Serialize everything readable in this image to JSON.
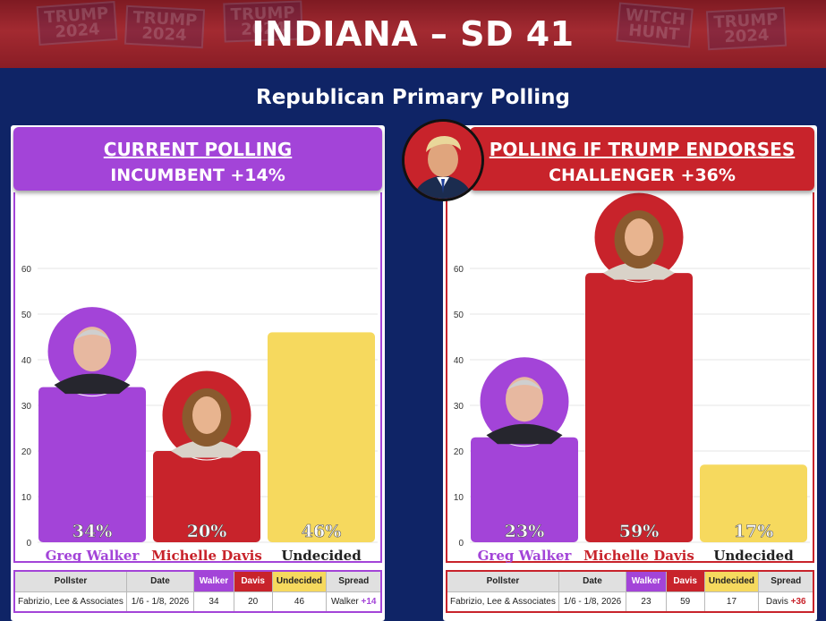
{
  "banner": {
    "title": "INDIANA – SD 41",
    "background_signs": [
      {
        "text": "TRUMP\n2024"
      },
      {
        "text": "TRUMP\n2024"
      },
      {
        "text": "TRUMP\n2024"
      },
      {
        "text": "WITCH\nHUNT"
      },
      {
        "text": "TRUMP\n2024"
      }
    ]
  },
  "subtitle": "Republican Primary Polling",
  "colors": {
    "walker": "#a344d8",
    "davis": "#c8232b",
    "undecided": "#f6d95e",
    "background": "#0f2466",
    "spread_walker": "#a344d8",
    "spread_davis": "#c8232b"
  },
  "panels": [
    {
      "header_line1": "CURRENT POLLING",
      "header_line2": "INCUMBENT +14%",
      "table": {
        "headers": [
          "Pollster",
          "Date",
          "Walker",
          "Davis",
          "Undecided",
          "Spread"
        ],
        "row": {
          "pollster": "Fabrizio, Lee & Associates",
          "date": "1/6 - 1/8, 2026",
          "walker": "34",
          "davis": "20",
          "undecided": "46",
          "spread_name": "Walker",
          "spread_value": "+14"
        }
      }
    },
    {
      "header_line1": "POLLING IF TRUMP ENDORSES",
      "header_line2": "CHALLENGER +36%",
      "avatar_icon": "trump-portrait",
      "table": {
        "headers": [
          "Pollster",
          "Date",
          "Walker",
          "Davis",
          "Undecided",
          "Spread"
        ],
        "row": {
          "pollster": "Fabrizio, Lee & Associates",
          "date": "1/6 - 1/8, 2026",
          "walker": "23",
          "davis": "59",
          "undecided": "17",
          "spread_name": "Davis",
          "spread_value": "+36"
        }
      }
    }
  ],
  "chart_data": [
    {
      "type": "bar",
      "title": "CURRENT POLLING",
      "categories": [
        "Greg Walker",
        "Michelle Davis",
        "Undecided"
      ],
      "values": [
        34,
        20,
        46
      ],
      "value_labels": [
        "34%",
        "20%",
        "46%"
      ],
      "colors": [
        "#a344d8",
        "#c8232b",
        "#f6d95e"
      ],
      "name_colors": [
        "#a344d8",
        "#c8232b",
        "#222222"
      ],
      "avatars": [
        "walker-portrait",
        "davis-portrait",
        null
      ],
      "ylim": [
        0,
        60
      ],
      "yticks": [
        "0",
        "10",
        "20",
        "30",
        "40",
        "50",
        "60"
      ],
      "grid": true
    },
    {
      "type": "bar",
      "title": "POLLING IF TRUMP ENDORSES",
      "categories": [
        "Greg Walker",
        "Michelle Davis",
        "Undecided"
      ],
      "values": [
        23,
        59,
        17
      ],
      "value_labels": [
        "23%",
        "59%",
        "17%"
      ],
      "colors": [
        "#a344d8",
        "#c8232b",
        "#f6d95e"
      ],
      "name_colors": [
        "#a344d8",
        "#c8232b",
        "#222222"
      ],
      "avatars": [
        "walker-portrait",
        "davis-portrait",
        null
      ],
      "ylim": [
        0,
        60
      ],
      "yticks": [
        "0",
        "10",
        "20",
        "30",
        "40",
        "50",
        "60"
      ],
      "grid": true
    }
  ]
}
